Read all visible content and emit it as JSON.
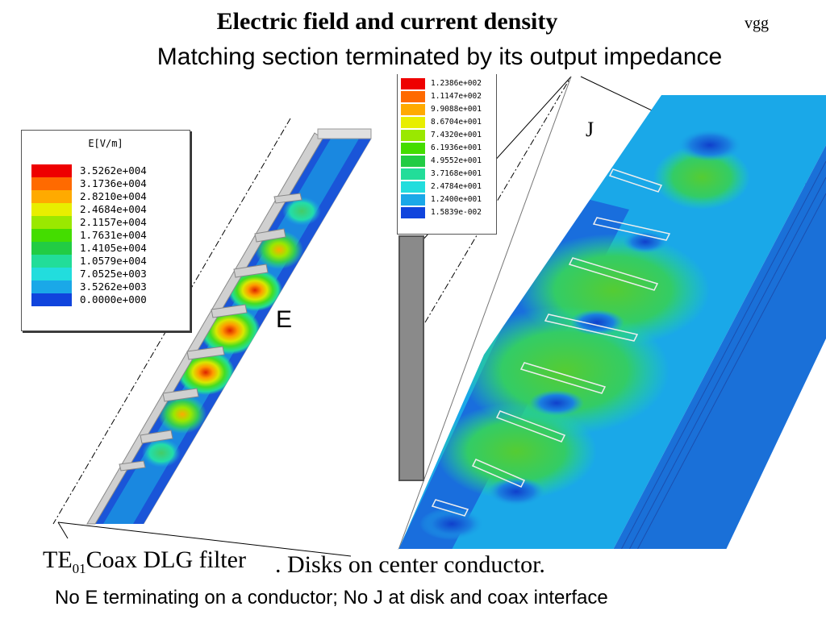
{
  "header": {
    "title": "Electric field and current density",
    "author": "vgg",
    "subtitle": "Matching section terminated by its output impedance"
  },
  "e_plot": {
    "label": "E",
    "legend": {
      "title": "E[V/m]",
      "entries": [
        {
          "value": "3.5262e+004",
          "color": "#ee0000"
        },
        {
          "value": "3.1736e+004",
          "color": "#ff6a00"
        },
        {
          "value": "2.8210e+004",
          "color": "#ffaa00"
        },
        {
          "value": "2.4684e+004",
          "color": "#e8ee00"
        },
        {
          "value": "2.1157e+004",
          "color": "#9ae800"
        },
        {
          "value": "1.7631e+004",
          "color": "#44dd00"
        },
        {
          "value": "1.4105e+004",
          "color": "#22cc44"
        },
        {
          "value": "1.0579e+004",
          "color": "#22dd99"
        },
        {
          "value": "7.0525e+003",
          "color": "#22dddd"
        },
        {
          "value": "3.5262e+003",
          "color": "#1aa8e8"
        },
        {
          "value": "0.0000e+000",
          "color": "#1044dd"
        }
      ]
    }
  },
  "j_plot": {
    "label": "J",
    "legend": {
      "entries": [
        {
          "value": "1.2386e+002",
          "color": "#ee0000"
        },
        {
          "value": "1.1147e+002",
          "color": "#ff6a00"
        },
        {
          "value": "9.9088e+001",
          "color": "#ffaa00"
        },
        {
          "value": "8.6704e+001",
          "color": "#e8ee00"
        },
        {
          "value": "7.4320e+001",
          "color": "#9ae800"
        },
        {
          "value": "6.1936e+001",
          "color": "#44dd00"
        },
        {
          "value": "4.9552e+001",
          "color": "#22cc44"
        },
        {
          "value": "3.7168e+001",
          "color": "#22dd99"
        },
        {
          "value": "2.4784e+001",
          "color": "#22dddd"
        },
        {
          "value": "1.2400e+001",
          "color": "#1aa8e8"
        },
        {
          "value": "1.5839e-002",
          "color": "#1044dd"
        }
      ]
    }
  },
  "caption": {
    "prefix": "TE",
    "subscript": "01",
    "main": "Coax DLG filter",
    "tail": ". Disks on center conductor."
  },
  "note": "No E terminating on a conductor; No J at disk and coax interface"
}
